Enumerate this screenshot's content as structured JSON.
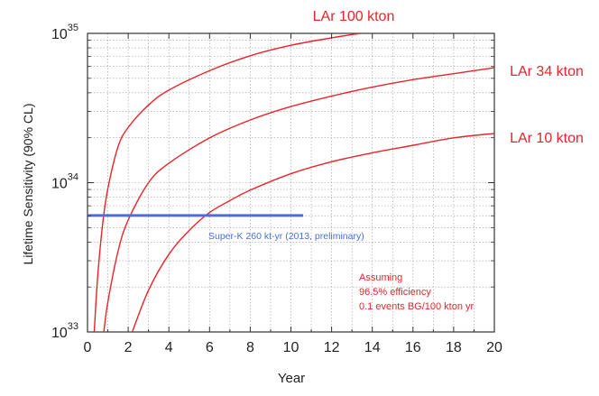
{
  "chart_data": {
    "type": "line",
    "xlabel": "Year",
    "ylabel": "Lifetime Sensitivity (90% CL)",
    "xlim": [
      0,
      20
    ],
    "ylim_log10": [
      33,
      35
    ],
    "x_ticks": [
      "0",
      "2",
      "4",
      "6",
      "8",
      "10",
      "12",
      "14",
      "16",
      "18",
      "20"
    ],
    "y_ticks": [
      {
        "base": "10",
        "exp": "33",
        "value_log10": 33
      },
      {
        "base": "10",
        "exp": "34",
        "value_log10": 34
      },
      {
        "base": "10",
        "exp": "35",
        "value_log10": 35
      }
    ],
    "grid": true,
    "series": [
      {
        "name": "LAr 100 kton",
        "color": "#e8242a",
        "x": [
          0.33,
          0.5,
          0.75,
          1.0,
          1.5,
          2.0,
          3.0,
          4.0,
          6.0,
          8.0,
          10.0,
          12.0,
          13.4
        ],
        "y_log10": [
          33.0,
          33.37,
          33.73,
          33.96,
          34.24,
          34.37,
          34.52,
          34.62,
          34.75,
          34.85,
          34.92,
          34.97,
          35.0
        ]
      },
      {
        "name": "LAr 34 kton",
        "color": "#e8242a",
        "x": [
          0.8,
          1.0,
          1.5,
          2.0,
          3.0,
          4.0,
          6.0,
          8.0,
          10.0,
          12.0,
          14.0,
          16.0,
          18.0,
          20.0
        ],
        "y_log10": [
          33.0,
          33.2,
          33.54,
          33.75,
          34.0,
          34.13,
          34.3,
          34.42,
          34.51,
          34.58,
          34.64,
          34.69,
          34.73,
          34.77
        ]
      },
      {
        "name": "LAr 10 kton",
        "color": "#e8242a",
        "x": [
          2.2,
          3.0,
          4.0,
          5.0,
          6.0,
          7.0,
          8.0,
          10.0,
          12.0,
          14.0,
          16.0,
          18.0,
          20.0
        ],
        "y_log10": [
          33.0,
          33.28,
          33.52,
          33.68,
          33.8,
          33.88,
          33.95,
          34.06,
          34.14,
          34.2,
          34.25,
          34.3,
          34.33
        ]
      },
      {
        "name": "Super-K 260 kt-yr (2013, preliminary)",
        "color": "#4a6fd8",
        "x": [
          0,
          10.6
        ],
        "y_log10": [
          33.78,
          33.78
        ]
      }
    ],
    "annotation": [
      "Assuming",
      "96.5% efficiency",
      "0.1 events BG/100 kton yr"
    ],
    "annotation_color": "#e8242a"
  }
}
